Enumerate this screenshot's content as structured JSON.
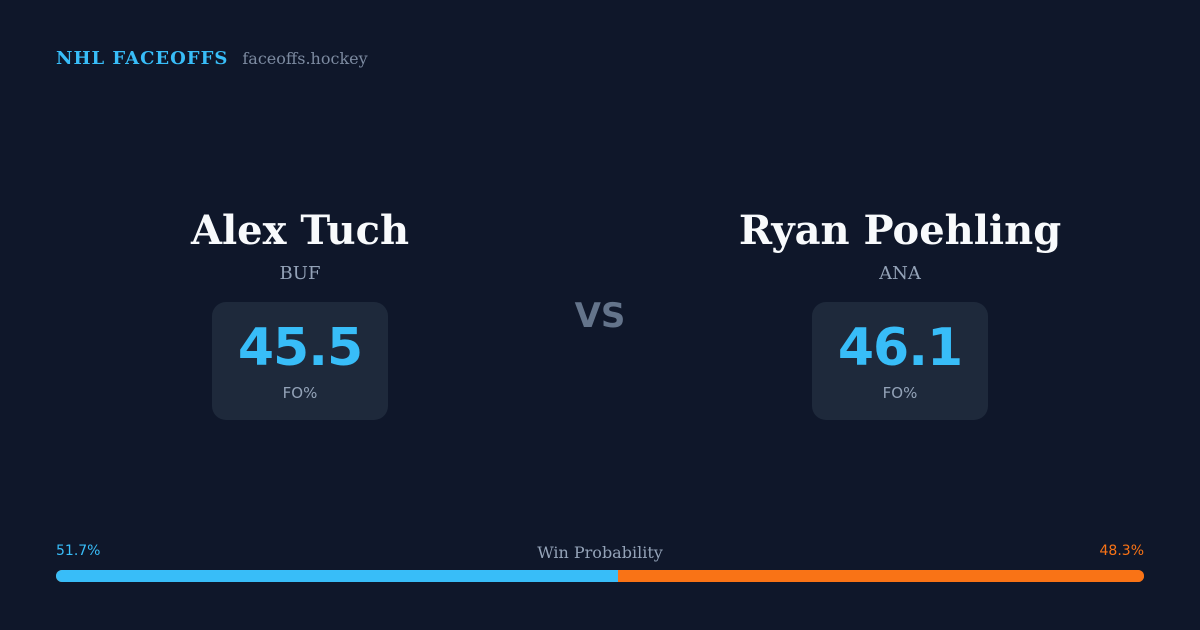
{
  "header": {
    "brand": "NHL FACEOFFS",
    "site": "faceoffs.hockey"
  },
  "players": {
    "left": {
      "name": "Alex Tuch",
      "team": "BUF",
      "stat_value": "45.5",
      "stat_label": "FO%"
    },
    "right": {
      "name": "Ryan Poehling",
      "team": "ANA",
      "stat_value": "46.1",
      "stat_label": "FO%"
    }
  },
  "versus": "VS",
  "win_probability": {
    "label": "Win Probability",
    "left_text": "51.7%",
    "right_text": "48.3%",
    "left_value": 51.7,
    "right_value": 48.3,
    "left_color": "#38bdf8",
    "right_color": "#f97316"
  }
}
